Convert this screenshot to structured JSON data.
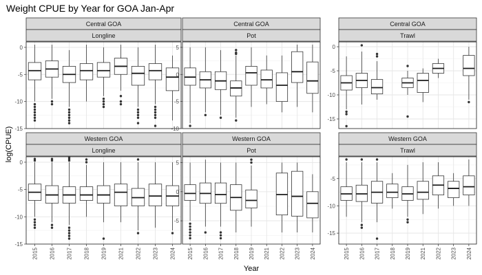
{
  "chart_data": {
    "type": "boxplot",
    "title": "Weight CPUE by Year for GOA Jan-Apr",
    "xlabel": "Year",
    "ylabel": "log(CPUE)",
    "years": [
      "2015",
      "2016",
      "2017",
      "2018",
      "2019",
      "2021",
      "2022",
      "2023",
      "2024"
    ],
    "grid": true,
    "scales": "free_y",
    "panels": [
      {
        "region": "Central GOA",
        "gear": "Longline",
        "ylim": [
          -15,
          1
        ],
        "yticks": [
          0,
          -5,
          -10,
          -15
        ],
        "boxes": [
          {
            "year": "2015",
            "min": -10,
            "q1": -6.0,
            "median": -4.3,
            "q3": -2.8,
            "max": 0.5,
            "outliers": [
              -10.5,
              -11,
              -11.5,
              -12,
              -12.5,
              -13,
              -13.5
            ]
          },
          {
            "year": "2016",
            "min": -9.5,
            "q1": -5.5,
            "median": -4.0,
            "q3": -2.5,
            "max": 0.5,
            "outliers": [
              -10,
              -10.5
            ]
          },
          {
            "year": "2017",
            "min": -11,
            "q1": -6.5,
            "median": -5.0,
            "q3": -3.5,
            "max": -0.5,
            "outliers": [
              -11.5,
              -12,
              -12.5,
              -13,
              -13.5,
              -14
            ]
          },
          {
            "year": "2018",
            "min": -10,
            "q1": -6.0,
            "median": -4.3,
            "q3": -3.0,
            "max": 0.5,
            "outliers": []
          },
          {
            "year": "2019",
            "min": -9,
            "q1": -5.5,
            "median": -4.3,
            "q3": -2.8,
            "max": 0,
            "outliers": [
              -9.5,
              -10,
              -10.5,
              -11
            ]
          },
          {
            "year": "2021",
            "min": -8,
            "q1": -5.0,
            "median": -3.5,
            "q3": -2.0,
            "max": 0.5,
            "outliers": [
              -9,
              -10,
              -10.5
            ]
          },
          {
            "year": "2022",
            "min": -11,
            "q1": -7.0,
            "median": -4.8,
            "q3": -3.5,
            "max": 0,
            "outliers": [
              -11.5,
              -12,
              -12.5,
              -13,
              -14
            ]
          },
          {
            "year": "2023",
            "min": -10.5,
            "q1": -6.0,
            "median": -4.3,
            "q3": -3.0,
            "max": 0.5,
            "outliers": [
              -11,
              -11.5,
              -12,
              -12.5,
              -13,
              -14.5
            ]
          },
          {
            "year": "2024",
            "min": -13.5,
            "q1": -8.0,
            "median": -5.5,
            "q3": -3.8,
            "max": -1.5,
            "outliers": []
          }
        ]
      },
      {
        "region": "Central GOA",
        "gear": "Pot",
        "ylim": [
          -10,
          6
        ],
        "yticks": [
          5,
          0,
          -5,
          -10
        ],
        "boxes": [
          {
            "year": "2015",
            "min": -9,
            "q1": -2.0,
            "median": -0.5,
            "q3": 1.2,
            "max": 5,
            "outliers": [
              -9.5
            ]
          },
          {
            "year": "2016",
            "min": -7,
            "q1": -2.5,
            "median": -1.0,
            "q3": 0.5,
            "max": 5,
            "outliers": [
              -7.5
            ]
          },
          {
            "year": "2017",
            "min": -7.5,
            "q1": -2.8,
            "median": -1.2,
            "q3": 0.5,
            "max": 4.5,
            "outliers": [
              -8
            ]
          },
          {
            "year": "2018",
            "min": -8,
            "q1": -4.0,
            "median": -2.5,
            "q3": -1.2,
            "max": 3.5,
            "outliers": [
              -8.5,
              3.8,
              4,
              4.5
            ]
          },
          {
            "year": "2019",
            "min": -6,
            "q1": -2.0,
            "median": 0.3,
            "q3": 1.5,
            "max": 5,
            "outliers": []
          },
          {
            "year": "2021",
            "min": -5.5,
            "q1": -2.5,
            "median": -1.0,
            "q3": 0.8,
            "max": 3.5,
            "outliers": []
          },
          {
            "year": "2022",
            "min": -7,
            "q1": -5.0,
            "median": -2.0,
            "q3": 0.3,
            "max": 3.5,
            "outliers": []
          },
          {
            "year": "2023",
            "min": -6,
            "q1": -1.5,
            "median": 0.5,
            "q3": 4.2,
            "max": 5.5,
            "outliers": []
          },
          {
            "year": "2024",
            "min": -7,
            "q1": -3.5,
            "median": -1.2,
            "q3": 2.3,
            "max": 5.5,
            "outliers": []
          }
        ]
      },
      {
        "region": "Central GOA",
        "gear": "Trawl",
        "ylim": [
          -17,
          1
        ],
        "yticks": [
          0,
          -5,
          -10,
          -15
        ],
        "boxes": [
          {
            "year": "2015",
            "min": -13,
            "q1": -9.0,
            "median": -7.5,
            "q3": -6.0,
            "max": -2,
            "outliers": [
              -13.5,
              -14,
              -16.5
            ]
          },
          {
            "year": "2016",
            "min": -12,
            "q1": -8.5,
            "median": -7.0,
            "q3": -5.5,
            "max": -1,
            "outliers": [
              0.3
            ]
          },
          {
            "year": "2017",
            "min": -11,
            "q1": -9.8,
            "median": -8.5,
            "q3": -6.8,
            "max": -3,
            "outliers": [
              -1.5,
              -2
            ]
          },
          {
            "year": "2019",
            "min": -10,
            "q1": -8.5,
            "median": -7.5,
            "q3": -6.5,
            "max": -5,
            "outliers": [
              -4,
              -14.5
            ]
          },
          {
            "year": "2021",
            "min": -11.5,
            "q1": -9.5,
            "median": -7.0,
            "q3": -5.5,
            "max": -4.5,
            "outliers": []
          },
          {
            "year": "2022",
            "min": -6.5,
            "q1": -5.5,
            "median": -4.5,
            "q3": -3.5,
            "max": -2.5,
            "outliers": []
          },
          {
            "year": "2024",
            "min": -11,
            "q1": -6.0,
            "median": -4.5,
            "q3": -1.8,
            "max": 0,
            "outliers": [
              -11.5
            ]
          }
        ]
      },
      {
        "region": "Western GOA",
        "gear": "Longline",
        "ylim": [
          -15,
          1
        ],
        "yticks": [
          0,
          -5,
          -10,
          -15
        ],
        "boxes": [
          {
            "year": "2015",
            "min": -10,
            "q1": -7.0,
            "median": -5.5,
            "q3": -4.0,
            "max": 0,
            "outliers": [
              -10.5,
              -11,
              -11.5,
              -12,
              0.3,
              0.6
            ]
          },
          {
            "year": "2016",
            "min": -11,
            "q1": -7.5,
            "median": -6.0,
            "q3": -4.3,
            "max": 0,
            "outliers": [
              -11.5,
              -12,
              0.3,
              0.6
            ]
          },
          {
            "year": "2017",
            "min": -11.5,
            "q1": -7.5,
            "median": -6.0,
            "q3": -4.5,
            "max": 0,
            "outliers": [
              -12,
              -12.5,
              -13,
              -13.5,
              -14,
              0.3,
              0.6,
              0.9
            ]
          },
          {
            "year": "2018",
            "min": -10,
            "q1": -7.0,
            "median": -6.0,
            "q3": -4.5,
            "max": -0.5,
            "outliers": [
              0,
              0.5
            ]
          },
          {
            "year": "2019",
            "min": -11,
            "q1": -7.5,
            "median": -6.0,
            "q3": -4.3,
            "max": 0,
            "outliers": [
              -14
            ]
          },
          {
            "year": "2021",
            "min": -11,
            "q1": -8.0,
            "median": -5.5,
            "q3": -4.0,
            "max": 0,
            "outliers": []
          },
          {
            "year": "2022",
            "min": -12.5,
            "q1": -8.0,
            "median": -6.5,
            "q3": -4.8,
            "max": 0,
            "outliers": [
              -13,
              0.5
            ]
          },
          {
            "year": "2023",
            "min": -12,
            "q1": -8.0,
            "median": -6.2,
            "q3": -4.0,
            "max": 0,
            "outliers": []
          },
          {
            "year": "2024",
            "min": -12.5,
            "q1": -8.0,
            "median": -6.2,
            "q3": -4.3,
            "max": 0,
            "outliers": [
              -13
            ]
          }
        ]
      },
      {
        "region": "Western GOA",
        "gear": "Pot",
        "ylim": [
          -9,
          6
        ],
        "yticks": [
          5,
          0,
          -5
        ],
        "boxes": [
          {
            "year": "2015",
            "min": -5,
            "q1": -1.5,
            "median": -0.3,
            "q3": 1.2,
            "max": 5,
            "outliers": [
              -5.5,
              -6,
              -6.5,
              -7,
              -7.5,
              -8
            ]
          },
          {
            "year": "2016",
            "min": -6,
            "q1": -2.0,
            "median": -0.3,
            "q3": 1.5,
            "max": 5.5,
            "outliers": [
              -7
            ]
          },
          {
            "year": "2017",
            "min": -6,
            "q1": -2.0,
            "median": -0.5,
            "q3": 1.5,
            "max": 5,
            "outliers": [
              -7,
              -7.5,
              -8
            ]
          },
          {
            "year": "2018",
            "min": -7,
            "q1": -3.2,
            "median": -1.0,
            "q3": 1.2,
            "max": 5,
            "outliers": []
          },
          {
            "year": "2019",
            "min": -6,
            "q1": -2.8,
            "median": -1.5,
            "q3": 0.3,
            "max": 4.5,
            "outliers": [
              5,
              5.5
            ]
          },
          {
            "year": "2022",
            "min": -7,
            "q1": -4.0,
            "median": -0.5,
            "q3": 3.2,
            "max": 5,
            "outliers": []
          },
          {
            "year": "2023",
            "min": -7,
            "q1": -4.2,
            "median": -0.8,
            "q3": 3.5,
            "max": 5,
            "outliers": []
          },
          {
            "year": "2024",
            "min": -7,
            "q1": -4.5,
            "median": -2.0,
            "q3": 0,
            "max": 3,
            "outliers": []
          }
        ]
      },
      {
        "region": "Western GOA",
        "gear": "Trawl",
        "ylim": [
          -17,
          -1
        ],
        "yticks": [
          -5,
          -10,
          -15
        ],
        "boxes": [
          {
            "year": "2015",
            "min": -12,
            "q1": -9.0,
            "median": -7.8,
            "q3": -6.5,
            "max": -2,
            "outliers": [
              -1.5
            ]
          },
          {
            "year": "2016",
            "min": -13,
            "q1": -9.2,
            "median": -7.8,
            "q3": -6.2,
            "max": -2,
            "outliers": [
              -13.5,
              -14,
              -1.5
            ]
          },
          {
            "year": "2017",
            "min": -13,
            "q1": -9.5,
            "median": -7.5,
            "q3": -5.5,
            "max": -2,
            "outliers": [
              -1.5,
              -16
            ]
          },
          {
            "year": "2018",
            "min": -10.5,
            "q1": -8.5,
            "median": -7.5,
            "q3": -6.0,
            "max": -4,
            "outliers": []
          },
          {
            "year": "2019",
            "min": -12,
            "q1": -9.0,
            "median": -7.8,
            "q3": -6.5,
            "max": -2.5,
            "outliers": [
              -12.5,
              -13
            ]
          },
          {
            "year": "2021",
            "min": -11.5,
            "q1": -8.8,
            "median": -7.5,
            "q3": -5.5,
            "max": -2,
            "outliers": []
          },
          {
            "year": "2022",
            "min": -10.5,
            "q1": -8.0,
            "median": -6.2,
            "q3": -4.5,
            "max": -2,
            "outliers": []
          },
          {
            "year": "2023",
            "min": -10,
            "q1": -8.5,
            "median": -6.8,
            "q3": -5.5,
            "max": -4,
            "outliers": []
          },
          {
            "year": "2024",
            "min": -10,
            "q1": -8.0,
            "median": -6.5,
            "q3": -4.5,
            "max": -1.5,
            "outliers": []
          }
        ]
      }
    ]
  }
}
